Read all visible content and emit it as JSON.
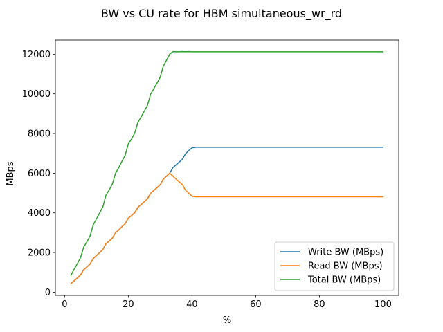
{
  "chart_data": {
    "type": "line",
    "title": "BW vs CU rate for HBM simultaneous_wr_rd",
    "xlabel": "%",
    "ylabel": "MBps",
    "xlim": [
      -2.9,
      104.9
    ],
    "ylim": [
      -160,
      12710
    ],
    "xticks": [
      0,
      20,
      40,
      60,
      80,
      100
    ],
    "yticks": [
      0,
      2000,
      4000,
      6000,
      8000,
      10000,
      12000
    ],
    "grid": false,
    "legend_position": "lower right",
    "series": [
      {
        "name": "Write BW (MBps)",
        "color": "#1f77b4",
        "x": [
          2,
          3,
          4,
          5,
          6,
          7,
          8,
          9,
          10,
          11,
          12,
          13,
          14,
          15,
          16,
          17,
          18,
          19,
          20,
          21,
          22,
          23,
          24,
          25,
          26,
          27,
          28,
          29,
          30,
          31,
          32,
          33,
          34,
          35,
          36,
          37,
          38,
          39,
          40,
          41,
          42,
          45,
          50,
          60,
          70,
          80,
          90,
          100
        ],
        "y": [
          430,
          580,
          720,
          870,
          1140,
          1270,
          1420,
          1700,
          1850,
          2000,
          2150,
          2450,
          2580,
          2730,
          3000,
          3140,
          3300,
          3450,
          3740,
          3860,
          4010,
          4280,
          4420,
          4560,
          4710,
          4990,
          5130,
          5270,
          5420,
          5700,
          5850,
          6000,
          6280,
          6420,
          6560,
          6710,
          6990,
          7140,
          7280,
          7310,
          7310,
          7310,
          7310,
          7310,
          7310,
          7310,
          7310,
          7310
        ]
      },
      {
        "name": "Read BW (MBps)",
        "color": "#ff7f0e",
        "x": [
          2,
          3,
          4,
          5,
          6,
          7,
          8,
          9,
          10,
          11,
          12,
          13,
          14,
          15,
          16,
          17,
          18,
          19,
          20,
          21,
          22,
          23,
          24,
          25,
          26,
          27,
          28,
          29,
          30,
          31,
          32,
          33,
          34,
          35,
          36,
          37,
          38,
          39,
          40,
          41,
          42,
          45,
          50,
          60,
          70,
          80,
          90,
          100
        ],
        "y": [
          430,
          580,
          720,
          870,
          1140,
          1270,
          1420,
          1700,
          1850,
          2000,
          2150,
          2450,
          2580,
          2730,
          3000,
          3140,
          3300,
          3450,
          3740,
          3860,
          4010,
          4280,
          4420,
          4560,
          4710,
          4990,
          5130,
          5270,
          5420,
          5700,
          5850,
          6000,
          5850,
          5700,
          5560,
          5420,
          5130,
          4990,
          4840,
          4810,
          4810,
          4810,
          4810,
          4810,
          4810,
          4810,
          4810,
          4810
        ]
      },
      {
        "name": "Total BW (MBps)",
        "color": "#2ca02c",
        "x": [
          2,
          3,
          4,
          5,
          6,
          7,
          8,
          9,
          10,
          11,
          12,
          13,
          14,
          15,
          16,
          17,
          18,
          19,
          20,
          21,
          22,
          23,
          24,
          25,
          26,
          27,
          28,
          29,
          30,
          31,
          32,
          33,
          34,
          35,
          36,
          37,
          38,
          39,
          40,
          41,
          42,
          45,
          50,
          60,
          70,
          80,
          90,
          100
        ],
        "y": [
          860,
          1160,
          1440,
          1740,
          2280,
          2540,
          2840,
          3400,
          3700,
          4000,
          4300,
          4900,
          5160,
          5460,
          6000,
          6280,
          6600,
          6900,
          7480,
          7720,
          8020,
          8560,
          8840,
          9120,
          9420,
          9980,
          10260,
          10540,
          10840,
          11400,
          11700,
          12000,
          12130,
          12120,
          12120,
          12130,
          12120,
          12130,
          12120,
          12120,
          12120,
          12120,
          12120,
          12120,
          12120,
          12120,
          12120,
          12120
        ]
      }
    ]
  }
}
